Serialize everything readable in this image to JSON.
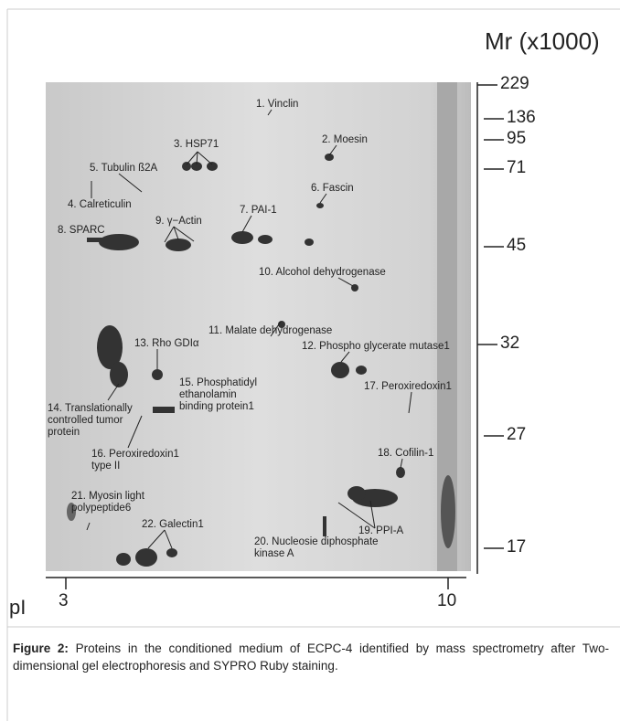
{
  "figure": {
    "mr_axis": {
      "title": "Mr (x1000)",
      "ticks": [
        229,
        136,
        95,
        71,
        45,
        32,
        27,
        17
      ]
    },
    "pi_axis": {
      "title": "pI",
      "ticks": [
        3,
        10
      ]
    },
    "labels": [
      {
        "lines": [
          "1. Vinclin"
        ]
      },
      {
        "lines": [
          "2. Moesin"
        ]
      },
      {
        "lines": [
          "3. HSP71"
        ]
      },
      {
        "lines": [
          "5. Tubulin ß2A"
        ]
      },
      {
        "lines": [
          "4. Calreticulin"
        ]
      },
      {
        "lines": [
          "6. Fascin"
        ]
      },
      {
        "lines": [
          "9. γ−Actin"
        ]
      },
      {
        "lines": [
          "7. PAI-1"
        ]
      },
      {
        "lines": [
          "8. SPARC"
        ]
      },
      {
        "lines": [
          "10. Alcohol dehydrogenase"
        ]
      },
      {
        "lines": [
          "11. Malate dehydrogenase"
        ]
      },
      {
        "lines": [
          "13. Rho GDIα"
        ]
      },
      {
        "lines": [
          "12. Phospho glycerate mutase1"
        ]
      },
      {
        "lines": [
          "15. Phosphatidyl",
          "ethanolamin",
          "binding protein1"
        ]
      },
      {
        "lines": [
          "17. Peroxiredoxin1"
        ]
      },
      {
        "lines": [
          "14. Translationally",
          "controlled tumor",
          "protein"
        ]
      },
      {
        "lines": [
          "16. Peroxiredoxin1",
          "type II"
        ]
      },
      {
        "lines": [
          "18. Cofilin-1"
        ]
      },
      {
        "lines": [
          "21. Myosin light",
          "polypeptide6"
        ]
      },
      {
        "lines": [
          "19. PPI-A"
        ]
      },
      {
        "lines": [
          "22. Galectin1"
        ]
      },
      {
        "lines": [
          "20. Nucleosie diphosphate",
          "kinase A"
        ]
      }
    ],
    "caption": {
      "label": "Figure 2:",
      "text": "Proteins in the conditioned medium of ECPC-4 identified by mass spectrometry after Two-dimensional gel electrophoresis and SYPRO Ruby staining."
    }
  }
}
